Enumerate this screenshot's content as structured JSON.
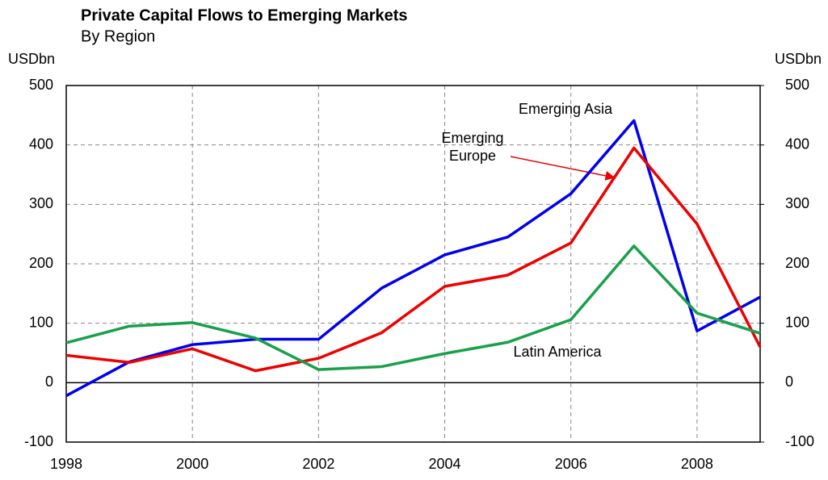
{
  "chart_data": {
    "type": "line",
    "title": "Private Capital Flows to Emerging Markets",
    "subtitle": "By Region",
    "y_label": "USDbn",
    "y2_label": "USDbn",
    "x": [
      1998,
      1999,
      2000,
      2001,
      2002,
      2003,
      2004,
      2005,
      2006,
      2007,
      2008,
      2009
    ],
    "xlim": [
      1998,
      2009
    ],
    "xticks": [
      1998,
      2000,
      2002,
      2004,
      2006,
      2008
    ],
    "ylim": [
      -100,
      500
    ],
    "yticks": [
      -100,
      0,
      100,
      200,
      300,
      400,
      500
    ],
    "y2lim": [
      -100,
      500
    ],
    "y2ticks": [
      -100,
      0,
      100,
      200,
      300,
      400,
      500
    ],
    "grid": true,
    "series": [
      {
        "name": "Emerging Asia",
        "color": "#0000ee",
        "values": [
          -22,
          35,
          64,
          73,
          73,
          159,
          215,
          245,
          318,
          441,
          87,
          144
        ]
      },
      {
        "name": "Emerging Europe",
        "color": "#ee0000",
        "values": [
          46,
          34,
          57,
          20,
          41,
          84,
          162,
          181,
          235,
          395,
          267,
          60
        ]
      },
      {
        "name": "Latin America",
        "color": "#18a04a",
        "values": [
          67,
          95,
          101,
          75,
          22,
          27,
          49,
          68,
          106,
          230,
          117,
          83
        ]
      }
    ]
  }
}
